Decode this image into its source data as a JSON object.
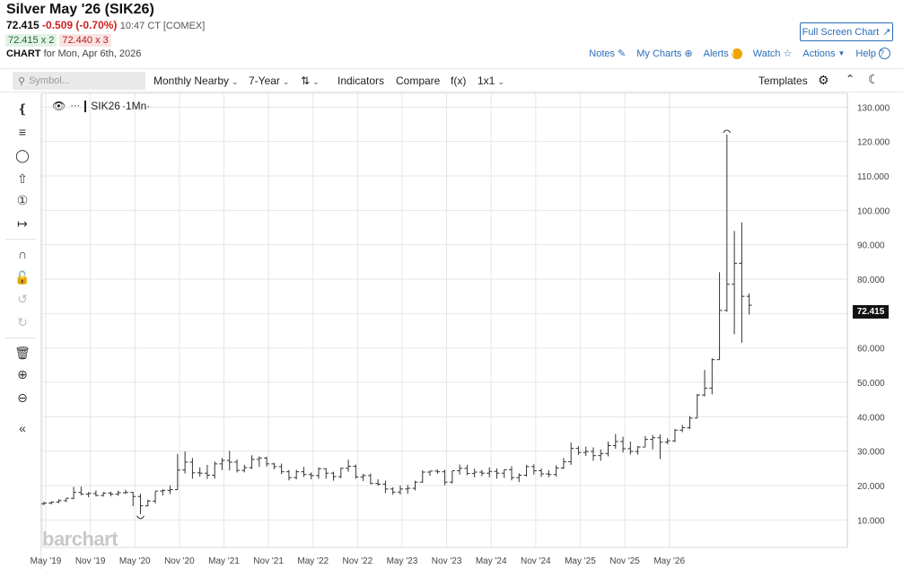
{
  "header": {
    "title": "Silver May '26 (SIK26)",
    "last": "72.415",
    "change": "-0.509 (-0.70%)",
    "time": "10:47 CT [COMEX]",
    "bid": "72.415 x 2",
    "ask": "72.440 x 3",
    "chart_label": "CHART",
    "chart_date": "for Mon, Apr 6th, 2026",
    "full_screen_label": "Full Screen Chart"
  },
  "top_links": {
    "notes": "Notes",
    "my_charts": "My Charts",
    "alerts": "Alerts",
    "watch": "Watch",
    "actions": "Actions",
    "help": "Help"
  },
  "toolbar": {
    "symbol_placeholder": "Symbol...",
    "period": "Monthly Nearby",
    "range": "7-Year",
    "indicators": "Indicators",
    "compare": "Compare",
    "fx": "f(x)",
    "layout": "1x1",
    "templates": "Templates"
  },
  "legend": {
    "symbol": "SIK26",
    "interval": "·1Mn·"
  },
  "price_box": "72.415",
  "logo": "barchart",
  "icons": {
    "search": "search-icon",
    "eye": "eye-icon",
    "gear": "gear-icon",
    "collapse": "collapse-icon",
    "theme": "moon-icon"
  },
  "colors": {
    "accent": "#2a6ebb",
    "down": "#d02020",
    "up": "#1d6b2f",
    "bar": "#333333",
    "grid": "#e6e6e6"
  },
  "chart_data": {
    "type": "ohlc",
    "ylim": [
      2,
      134
    ],
    "y_ticks": [
      "10.000",
      "20.000",
      "30.000",
      "40.000",
      "50.000",
      "60.000",
      "70.000",
      "80.000",
      "90.000",
      "100.000",
      "110.000",
      "120.000",
      "130.000"
    ],
    "x_ticks": [
      "May '19",
      "Nov '19",
      "May '20",
      "Nov '20",
      "May '21",
      "Nov '21",
      "May '22",
      "Nov '22",
      "May '23",
      "Nov '23",
      "May '24",
      "Nov '24",
      "May '25",
      "Nov '25",
      "May '26"
    ],
    "bars": [
      {
        "o": 14.7,
        "h": 15.3,
        "l": 14.3,
        "c": 14.9
      },
      {
        "o": 14.9,
        "h": 15.4,
        "l": 14.5,
        "c": 15.2
      },
      {
        "o": 15.2,
        "h": 16.0,
        "l": 14.9,
        "c": 15.6
      },
      {
        "o": 15.6,
        "h": 16.4,
        "l": 15.2,
        "c": 16.3
      },
      {
        "o": 16.3,
        "h": 19.6,
        "l": 16.0,
        "c": 18.0
      },
      {
        "o": 18.0,
        "h": 19.7,
        "l": 17.2,
        "c": 17.5
      },
      {
        "o": 17.5,
        "h": 18.1,
        "l": 16.6,
        "c": 17.7
      },
      {
        "o": 17.7,
        "h": 18.6,
        "l": 16.9,
        "c": 17.1
      },
      {
        "o": 17.1,
        "h": 18.1,
        "l": 16.8,
        "c": 17.8
      },
      {
        "o": 17.8,
        "h": 18.2,
        "l": 16.9,
        "c": 17.5
      },
      {
        "o": 17.5,
        "h": 18.5,
        "l": 17.0,
        "c": 17.9
      },
      {
        "o": 17.9,
        "h": 18.8,
        "l": 17.5,
        "c": 18.0
      },
      {
        "o": 18.0,
        "h": 18.2,
        "l": 14.0,
        "c": 16.8
      },
      {
        "o": 16.8,
        "h": 17.6,
        "l": 11.7,
        "c": 14.1
      },
      {
        "o": 14.1,
        "h": 15.9,
        "l": 14.0,
        "c": 15.5
      },
      {
        "o": 15.5,
        "h": 18.3,
        "l": 14.8,
        "c": 18.4
      },
      {
        "o": 18.4,
        "h": 18.9,
        "l": 17.1,
        "c": 18.6
      },
      {
        "o": 18.6,
        "h": 20.0,
        "l": 17.5,
        "c": 18.8
      },
      {
        "o": 18.8,
        "h": 29.2,
        "l": 18.8,
        "c": 24.5
      },
      {
        "o": 24.5,
        "h": 29.9,
        "l": 23.5,
        "c": 26.8
      },
      {
        "o": 26.8,
        "h": 28.0,
        "l": 22.0,
        "c": 23.7
      },
      {
        "o": 23.7,
        "h": 25.3,
        "l": 22.6,
        "c": 23.6
      },
      {
        "o": 23.6,
        "h": 26.0,
        "l": 21.9,
        "c": 23.0
      },
      {
        "o": 23.0,
        "h": 27.0,
        "l": 22.0,
        "c": 26.3
      },
      {
        "o": 26.3,
        "h": 28.0,
        "l": 24.5,
        "c": 27.3
      },
      {
        "o": 27.3,
        "h": 30.1,
        "l": 24.4,
        "c": 26.8
      },
      {
        "o": 26.8,
        "h": 27.6,
        "l": 23.8,
        "c": 24.4
      },
      {
        "o": 24.4,
        "h": 26.0,
        "l": 23.8,
        "c": 25.2
      },
      {
        "o": 25.2,
        "h": 28.8,
        "l": 24.8,
        "c": 27.6
      },
      {
        "o": 27.6,
        "h": 28.5,
        "l": 25.4,
        "c": 28.0
      },
      {
        "o": 28.0,
        "h": 28.4,
        "l": 25.5,
        "c": 26.3
      },
      {
        "o": 26.3,
        "h": 26.6,
        "l": 24.7,
        "c": 25.5
      },
      {
        "o": 25.5,
        "h": 26.4,
        "l": 23.3,
        "c": 24.0
      },
      {
        "o": 24.0,
        "h": 24.5,
        "l": 21.5,
        "c": 22.3
      },
      {
        "o": 22.3,
        "h": 24.6,
        "l": 21.8,
        "c": 24.0
      },
      {
        "o": 24.0,
        "h": 25.4,
        "l": 22.5,
        "c": 23.2
      },
      {
        "o": 23.2,
        "h": 23.8,
        "l": 21.8,
        "c": 22.9
      },
      {
        "o": 22.9,
        "h": 25.3,
        "l": 22.0,
        "c": 24.9
      },
      {
        "o": 24.9,
        "h": 25.0,
        "l": 22.0,
        "c": 23.6
      },
      {
        "o": 23.6,
        "h": 24.0,
        "l": 21.4,
        "c": 22.6
      },
      {
        "o": 22.6,
        "h": 25.2,
        "l": 22.1,
        "c": 25.0
      },
      {
        "o": 25.0,
        "h": 27.5,
        "l": 24.0,
        "c": 25.6
      },
      {
        "o": 25.6,
        "h": 26.1,
        "l": 22.0,
        "c": 22.5
      },
      {
        "o": 22.5,
        "h": 23.4,
        "l": 21.3,
        "c": 22.9
      },
      {
        "o": 22.9,
        "h": 23.5,
        "l": 20.3,
        "c": 20.6
      },
      {
        "o": 20.6,
        "h": 21.8,
        "l": 19.9,
        "c": 20.4
      },
      {
        "o": 20.4,
        "h": 21.4,
        "l": 17.8,
        "c": 19.0
      },
      {
        "o": 19.0,
        "h": 19.5,
        "l": 17.3,
        "c": 18.1
      },
      {
        "o": 18.1,
        "h": 20.0,
        "l": 17.4,
        "c": 19.0
      },
      {
        "o": 19.0,
        "h": 20.2,
        "l": 17.6,
        "c": 19.2
      },
      {
        "o": 19.2,
        "h": 21.4,
        "l": 18.6,
        "c": 21.0
      },
      {
        "o": 21.0,
        "h": 24.4,
        "l": 20.8,
        "c": 23.9
      },
      {
        "o": 23.9,
        "h": 24.3,
        "l": 22.8,
        "c": 24.2
      },
      {
        "o": 24.2,
        "h": 24.7,
        "l": 23.4,
        "c": 24.0
      },
      {
        "o": 24.0,
        "h": 24.6,
        "l": 20.1,
        "c": 21.0
      },
      {
        "o": 21.0,
        "h": 24.3,
        "l": 20.6,
        "c": 24.3
      },
      {
        "o": 24.3,
        "h": 26.1,
        "l": 23.2,
        "c": 25.0
      },
      {
        "o": 25.0,
        "h": 26.0,
        "l": 23.0,
        "c": 23.5
      },
      {
        "o": 23.5,
        "h": 24.9,
        "l": 22.4,
        "c": 23.9
      },
      {
        "o": 23.9,
        "h": 24.5,
        "l": 22.7,
        "c": 23.6
      },
      {
        "o": 23.6,
        "h": 25.3,
        "l": 22.4,
        "c": 24.1
      },
      {
        "o": 24.1,
        "h": 25.0,
        "l": 22.0,
        "c": 23.6
      },
      {
        "o": 23.6,
        "h": 24.7,
        "l": 22.2,
        "c": 24.6
      },
      {
        "o": 24.6,
        "h": 25.6,
        "l": 21.5,
        "c": 22.3
      },
      {
        "o": 22.3,
        "h": 23.6,
        "l": 21.0,
        "c": 23.0
      },
      {
        "o": 23.0,
        "h": 26.0,
        "l": 22.6,
        "c": 25.5
      },
      {
        "o": 25.5,
        "h": 26.2,
        "l": 23.2,
        "c": 24.3
      },
      {
        "o": 24.3,
        "h": 25.0,
        "l": 22.5,
        "c": 23.4
      },
      {
        "o": 23.4,
        "h": 24.5,
        "l": 22.4,
        "c": 23.2
      },
      {
        "o": 23.2,
        "h": 25.9,
        "l": 22.6,
        "c": 25.1
      },
      {
        "o": 25.1,
        "h": 28.0,
        "l": 24.8,
        "c": 26.9
      },
      {
        "o": 26.9,
        "h": 32.5,
        "l": 26.0,
        "c": 30.8
      },
      {
        "o": 30.8,
        "h": 31.5,
        "l": 28.9,
        "c": 29.6
      },
      {
        "o": 29.6,
        "h": 31.3,
        "l": 28.6,
        "c": 29.9
      },
      {
        "o": 29.9,
        "h": 31.1,
        "l": 27.2,
        "c": 28.7
      },
      {
        "o": 28.7,
        "h": 30.5,
        "l": 27.2,
        "c": 29.3
      },
      {
        "o": 29.3,
        "h": 32.8,
        "l": 28.5,
        "c": 31.6
      },
      {
        "o": 31.6,
        "h": 35.0,
        "l": 30.7,
        "c": 32.8
      },
      {
        "o": 32.8,
        "h": 34.2,
        "l": 29.6,
        "c": 30.7
      },
      {
        "o": 30.7,
        "h": 32.8,
        "l": 29.0,
        "c": 29.9
      },
      {
        "o": 29.9,
        "h": 31.5,
        "l": 29.0,
        "c": 31.2
      },
      {
        "o": 31.2,
        "h": 34.4,
        "l": 31.3,
        "c": 33.4
      },
      {
        "o": 33.4,
        "h": 34.7,
        "l": 30.5,
        "c": 33.9
      },
      {
        "o": 33.9,
        "h": 34.9,
        "l": 27.7,
        "c": 32.6
      },
      {
        "o": 32.6,
        "h": 33.8,
        "l": 32.0,
        "c": 33.0
      },
      {
        "o": 33.0,
        "h": 36.4,
        "l": 32.6,
        "c": 36.1
      },
      {
        "o": 36.1,
        "h": 37.6,
        "l": 35.5,
        "c": 36.8
      },
      {
        "o": 36.8,
        "h": 40.2,
        "l": 36.4,
        "c": 39.6
      },
      {
        "o": 39.6,
        "h": 46.6,
        "l": 39.6,
        "c": 46.3
      },
      {
        "o": 46.3,
        "h": 53.6,
        "l": 45.9,
        "c": 48.3
      },
      {
        "o": 48.3,
        "h": 57.0,
        "l": 46.5,
        "c": 56.6
      },
      {
        "o": 56.6,
        "h": 82.0,
        "l": 56.5,
        "c": 70.9
      },
      {
        "o": 70.9,
        "h": 122.0,
        "l": 70.5,
        "c": 78.5
      },
      {
        "o": 78.5,
        "h": 94.0,
        "l": 64.0,
        "c": 84.6
      },
      {
        "o": 84.6,
        "h": 96.5,
        "l": 61.5,
        "c": 75.0
      },
      {
        "o": 75.0,
        "h": 75.8,
        "l": 69.7,
        "c": 72.4
      }
    ]
  }
}
